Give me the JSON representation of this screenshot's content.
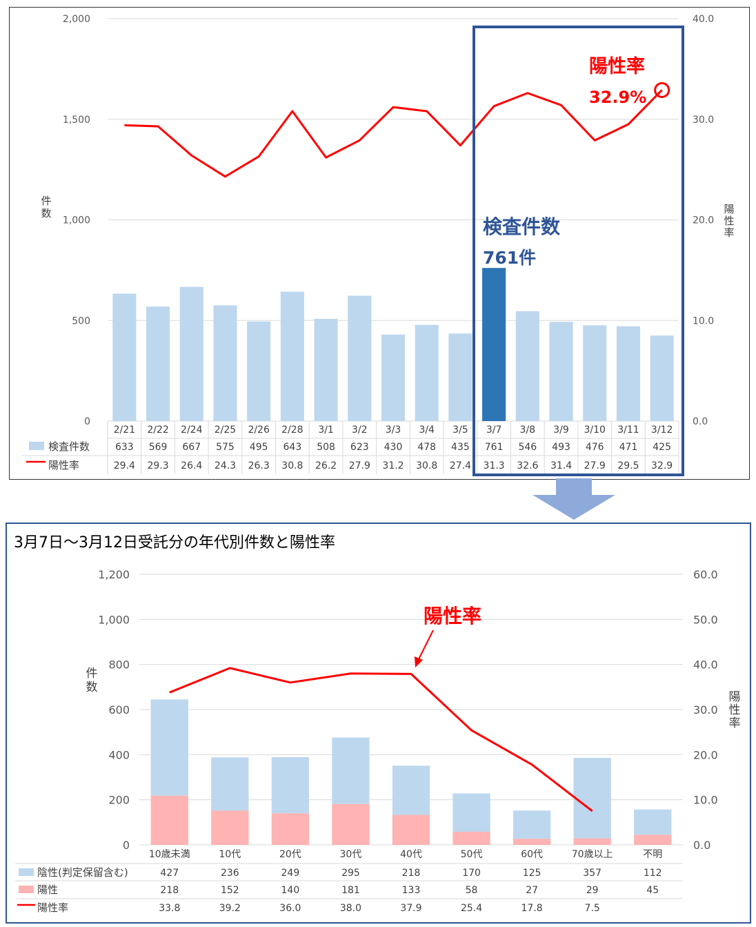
{
  "top_chart": {
    "y_left_label": "件数",
    "y_right_label": "陽性率",
    "left_ticks": [
      "2,000",
      "1,500",
      "1,000",
      "500",
      "0"
    ],
    "right_ticks": [
      "40.0",
      "30.0",
      "20.0",
      "10.0",
      "0.0"
    ],
    "row_labels": {
      "count": "検査件数",
      "rate": "陽性率"
    },
    "annotation_rate": {
      "title": "陽性率",
      "value": "32.9%"
    },
    "annotation_count": {
      "title": "検査件数",
      "value": "761件"
    },
    "colors": {
      "bar": "#bdd7ee",
      "highlight_bar": "#2e75b6",
      "line": "#ff0000",
      "highlight_box": "#2f5597"
    }
  },
  "bottom_chart": {
    "title": "3月7日～3月12日受託分の年代別件数と陽性率",
    "y_left_label": "件数",
    "y_right_label": "陽性率",
    "left_ticks": [
      "1,200",
      "1,000",
      "800",
      "600",
      "400",
      "200",
      "0"
    ],
    "right_ticks": [
      "60.0",
      "50.0",
      "40.0",
      "30.0",
      "20.0",
      "10.0",
      "0.0"
    ],
    "row_labels": {
      "negative": "陰性(判定保留含む)",
      "positive": "陽性",
      "rate": "陽性率"
    },
    "annotation_rate": "陽性率",
    "colors": {
      "negative": "#bdd7ee",
      "positive": "#ffb3b3",
      "line": "#ff0000"
    }
  },
  "chart_data": [
    {
      "type": "bar",
      "categories": [
        "2/21",
        "2/22",
        "2/24",
        "2/25",
        "2/26",
        "2/28",
        "3/1",
        "3/2",
        "3/3",
        "3/4",
        "3/5",
        "3/7",
        "3/8",
        "3/9",
        "3/10",
        "3/11",
        "3/12"
      ],
      "series": [
        {
          "name": "検査件数",
          "type": "bar",
          "axis": "left",
          "values": [
            633,
            569,
            667,
            575,
            495,
            643,
            508,
            623,
            430,
            478,
            435,
            761,
            546,
            493,
            476,
            471,
            425
          ]
        },
        {
          "name": "陽性率",
          "type": "line",
          "axis": "right",
          "values": [
            29.4,
            29.3,
            26.4,
            24.3,
            26.3,
            30.8,
            26.2,
            27.9,
            31.2,
            30.8,
            27.4,
            31.3,
            32.6,
            31.4,
            27.9,
            29.5,
            32.9
          ]
        }
      ],
      "ylabel": "件数",
      "y2label": "陽性率",
      "ylim": [
        0,
        2000
      ],
      "y2lim": [
        0,
        40
      ],
      "highlight_range": [
        "3/7",
        "3/12"
      ],
      "grid": true,
      "legend": "data-table"
    },
    {
      "type": "bar",
      "title": "3月7日～3月12日受託分の年代別件数と陽性率",
      "categories": [
        "10歳未満",
        "10代",
        "20代",
        "30代",
        "40代",
        "50代",
        "60代",
        "70歳以上",
        "不明"
      ],
      "stacked": true,
      "series": [
        {
          "name": "陽性",
          "type": "bar",
          "axis": "left",
          "values": [
            218,
            152,
            140,
            181,
            133,
            58,
            27,
            29,
            45
          ]
        },
        {
          "name": "陰性(判定保留含む)",
          "type": "bar",
          "axis": "left",
          "values": [
            427,
            236,
            249,
            295,
            218,
            170,
            125,
            357,
            112
          ]
        },
        {
          "name": "陽性率",
          "type": "line",
          "axis": "right",
          "values": [
            33.8,
            39.2,
            36.0,
            38.0,
            37.9,
            25.4,
            17.8,
            7.5,
            null
          ]
        }
      ],
      "ylabel": "件数",
      "y2label": "陽性率",
      "ylim": [
        0,
        1200
      ],
      "y2lim": [
        0,
        60
      ],
      "grid": true,
      "legend": "data-table"
    }
  ]
}
